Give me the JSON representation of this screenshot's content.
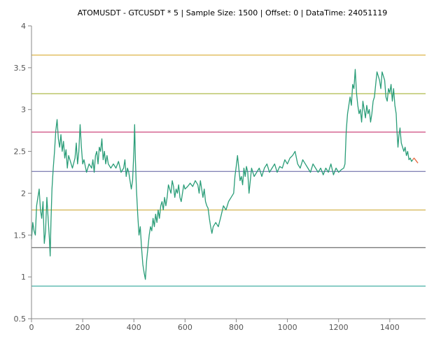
{
  "chart_data": {
    "type": "line",
    "title": "ATOMUSDT - GTCUSDT * 5 | Sample Size: 1500 | Offset: 0 | DataTime: 24051119",
    "xlabel": "",
    "ylabel": "",
    "xlim": [
      0,
      1540
    ],
    "ylim": [
      0.5,
      4
    ],
    "grid": false,
    "x_ticks": [
      0,
      200,
      400,
      600,
      800,
      1000,
      1200,
      1400
    ],
    "y_ticks": [
      0.5,
      1,
      1.5,
      2,
      2.5,
      3,
      3.5,
      4
    ],
    "x_tick_labels": [
      "0",
      "200",
      "400",
      "600",
      "800",
      "1000",
      "1200",
      "1400"
    ],
    "y_tick_labels": [
      "0.5",
      "1",
      "1.5",
      "2",
      "2.5",
      "3",
      "3.5",
      "4"
    ],
    "horizontal_lines": [
      {
        "y": 3.65,
        "color": "#d4a017"
      },
      {
        "y": 3.19,
        "color": "#9aa81e"
      },
      {
        "y": 2.73,
        "color": "#c2185b"
      },
      {
        "y": 2.26,
        "color": "#5c5c9e"
      },
      {
        "y": 1.8,
        "color": "#c9a227"
      },
      {
        "y": 1.35,
        "color": "#4a4a4a"
      },
      {
        "y": 0.89,
        "color": "#1a9e8f"
      }
    ],
    "series": [
      {
        "color": "#2a9d78",
        "points": [
          [
            0,
            1.45
          ],
          [
            5,
            1.65
          ],
          [
            10,
            1.55
          ],
          [
            15,
            1.5
          ],
          [
            20,
            1.85
          ],
          [
            25,
            1.95
          ],
          [
            30,
            2.05
          ],
          [
            35,
            1.8
          ],
          [
            40,
            1.7
          ],
          [
            45,
            1.9
          ],
          [
            50,
            1.4
          ],
          [
            55,
            1.55
          ],
          [
            60,
            1.95
          ],
          [
            65,
            1.7
          ],
          [
            70,
            1.45
          ],
          [
            73,
            1.25
          ],
          [
            76,
            1.65
          ],
          [
            80,
            2.05
          ],
          [
            85,
            2.3
          ],
          [
            90,
            2.5
          ],
          [
            95,
            2.75
          ],
          [
            100,
            2.88
          ],
          [
            105,
            2.65
          ],
          [
            110,
            2.55
          ],
          [
            115,
            2.7
          ],
          [
            120,
            2.5
          ],
          [
            125,
            2.62
          ],
          [
            130,
            2.42
          ],
          [
            135,
            2.52
          ],
          [
            140,
            2.3
          ],
          [
            145,
            2.45
          ],
          [
            150,
            2.4
          ],
          [
            160,
            2.3
          ],
          [
            170,
            2.42
          ],
          [
            175,
            2.6
          ],
          [
            180,
            2.35
          ],
          [
            185,
            2.5
          ],
          [
            190,
            2.82
          ],
          [
            195,
            2.55
          ],
          [
            200,
            2.35
          ],
          [
            205,
            2.4
          ],
          [
            215,
            2.25
          ],
          [
            225,
            2.35
          ],
          [
            235,
            2.3
          ],
          [
            240,
            2.4
          ],
          [
            245,
            2.25
          ],
          [
            250,
            2.45
          ],
          [
            255,
            2.5
          ],
          [
            260,
            2.35
          ],
          [
            265,
            2.55
          ],
          [
            270,
            2.5
          ],
          [
            275,
            2.65
          ],
          [
            280,
            2.4
          ],
          [
            285,
            2.5
          ],
          [
            290,
            2.35
          ],
          [
            295,
            2.45
          ],
          [
            300,
            2.35
          ],
          [
            310,
            2.3
          ],
          [
            320,
            2.35
          ],
          [
            330,
            2.3
          ],
          [
            340,
            2.38
          ],
          [
            350,
            2.25
          ],
          [
            360,
            2.3
          ],
          [
            365,
            2.4
          ],
          [
            370,
            2.2
          ],
          [
            375,
            2.3
          ],
          [
            380,
            2.25
          ],
          [
            385,
            2.15
          ],
          [
            390,
            2.05
          ],
          [
            395,
            2.15
          ],
          [
            400,
            2.5
          ],
          [
            403,
            2.82
          ],
          [
            406,
            2.4
          ],
          [
            410,
            2.05
          ],
          [
            415,
            1.75
          ],
          [
            420,
            1.5
          ],
          [
            425,
            1.6
          ],
          [
            430,
            1.35
          ],
          [
            435,
            1.15
          ],
          [
            440,
            1.05
          ],
          [
            445,
            0.97
          ],
          [
            450,
            1.2
          ],
          [
            455,
            1.35
          ],
          [
            460,
            1.5
          ],
          [
            465,
            1.6
          ],
          [
            470,
            1.55
          ],
          [
            475,
            1.7
          ],
          [
            480,
            1.6
          ],
          [
            485,
            1.75
          ],
          [
            490,
            1.65
          ],
          [
            495,
            1.8
          ],
          [
            500,
            1.7
          ],
          [
            505,
            1.85
          ],
          [
            510,
            1.9
          ],
          [
            515,
            1.8
          ],
          [
            520,
            1.95
          ],
          [
            525,
            1.85
          ],
          [
            530,
            1.95
          ],
          [
            535,
            2.1
          ],
          [
            540,
            2.05
          ],
          [
            545,
            2.0
          ],
          [
            550,
            2.15
          ],
          [
            555,
            2.08
          ],
          [
            560,
            1.95
          ],
          [
            565,
            2.05
          ],
          [
            570,
            2.0
          ],
          [
            575,
            2.1
          ],
          [
            580,
            1.95
          ],
          [
            585,
            1.9
          ],
          [
            590,
            2.0
          ],
          [
            595,
            2.1
          ],
          [
            600,
            2.05
          ],
          [
            610,
            2.08
          ],
          [
            620,
            2.12
          ],
          [
            630,
            2.08
          ],
          [
            640,
            2.15
          ],
          [
            650,
            2.1
          ],
          [
            655,
            2.0
          ],
          [
            660,
            2.15
          ],
          [
            665,
            2.05
          ],
          [
            670,
            1.95
          ],
          [
            675,
            2.05
          ],
          [
            680,
            1.9
          ],
          [
            685,
            1.85
          ],
          [
            690,
            1.82
          ],
          [
            695,
            1.7
          ],
          [
            700,
            1.6
          ],
          [
            705,
            1.52
          ],
          [
            710,
            1.6
          ],
          [
            720,
            1.65
          ],
          [
            730,
            1.6
          ],
          [
            740,
            1.72
          ],
          [
            750,
            1.85
          ],
          [
            760,
            1.8
          ],
          [
            770,
            1.9
          ],
          [
            780,
            1.95
          ],
          [
            790,
            2.0
          ],
          [
            795,
            2.2
          ],
          [
            800,
            2.32
          ],
          [
            805,
            2.45
          ],
          [
            810,
            2.3
          ],
          [
            815,
            2.15
          ],
          [
            820,
            2.2
          ],
          [
            825,
            2.1
          ],
          [
            830,
            2.3
          ],
          [
            835,
            2.2
          ],
          [
            840,
            2.32
          ],
          [
            845,
            2.25
          ],
          [
            850,
            2.0
          ],
          [
            860,
            2.3
          ],
          [
            870,
            2.2
          ],
          [
            880,
            2.25
          ],
          [
            890,
            2.3
          ],
          [
            900,
            2.2
          ],
          [
            910,
            2.3
          ],
          [
            920,
            2.35
          ],
          [
            930,
            2.25
          ],
          [
            940,
            2.3
          ],
          [
            950,
            2.35
          ],
          [
            960,
            2.25
          ],
          [
            970,
            2.32
          ],
          [
            980,
            2.3
          ],
          [
            990,
            2.4
          ],
          [
            1000,
            2.35
          ],
          [
            1010,
            2.42
          ],
          [
            1020,
            2.45
          ],
          [
            1030,
            2.5
          ],
          [
            1040,
            2.35
          ],
          [
            1050,
            2.3
          ],
          [
            1060,
            2.4
          ],
          [
            1070,
            2.35
          ],
          [
            1080,
            2.3
          ],
          [
            1090,
            2.25
          ],
          [
            1100,
            2.35
          ],
          [
            1110,
            2.3
          ],
          [
            1120,
            2.25
          ],
          [
            1130,
            2.3
          ],
          [
            1140,
            2.22
          ],
          [
            1150,
            2.3
          ],
          [
            1160,
            2.25
          ],
          [
            1170,
            2.35
          ],
          [
            1180,
            2.22
          ],
          [
            1190,
            2.3
          ],
          [
            1200,
            2.25
          ],
          [
            1210,
            2.28
          ],
          [
            1220,
            2.3
          ],
          [
            1225,
            2.35
          ],
          [
            1230,
            2.75
          ],
          [
            1235,
            2.95
          ],
          [
            1240,
            3.05
          ],
          [
            1245,
            3.15
          ],
          [
            1250,
            3.05
          ],
          [
            1255,
            3.3
          ],
          [
            1260,
            3.25
          ],
          [
            1265,
            3.48
          ],
          [
            1270,
            3.2
          ],
          [
            1275,
            3.05
          ],
          [
            1280,
            2.95
          ],
          [
            1285,
            3.0
          ],
          [
            1290,
            2.85
          ],
          [
            1295,
            3.1
          ],
          [
            1300,
            3.0
          ],
          [
            1305,
            2.9
          ],
          [
            1310,
            3.05
          ],
          [
            1315,
            2.95
          ],
          [
            1320,
            3.0
          ],
          [
            1325,
            2.85
          ],
          [
            1330,
            2.95
          ],
          [
            1335,
            3.1
          ],
          [
            1340,
            3.15
          ],
          [
            1345,
            3.3
          ],
          [
            1350,
            3.45
          ],
          [
            1355,
            3.4
          ],
          [
            1360,
            3.35
          ],
          [
            1365,
            3.25
          ],
          [
            1370,
            3.45
          ],
          [
            1375,
            3.4
          ],
          [
            1380,
            3.35
          ],
          [
            1385,
            3.15
          ],
          [
            1390,
            3.1
          ],
          [
            1395,
            3.25
          ],
          [
            1400,
            3.2
          ],
          [
            1405,
            3.3
          ],
          [
            1410,
            3.1
          ],
          [
            1415,
            3.25
          ],
          [
            1420,
            3.05
          ],
          [
            1425,
            2.95
          ],
          [
            1428,
            2.75
          ],
          [
            1432,
            2.55
          ],
          [
            1436,
            2.7
          ],
          [
            1440,
            2.78
          ],
          [
            1445,
            2.6
          ],
          [
            1450,
            2.55
          ],
          [
            1455,
            2.5
          ],
          [
            1460,
            2.55
          ],
          [
            1465,
            2.45
          ],
          [
            1470,
            2.5
          ],
          [
            1475,
            2.4
          ],
          [
            1480,
            2.42
          ],
          [
            1485,
            2.38
          ],
          [
            1490,
            2.4
          ]
        ]
      },
      {
        "color": "#e8663d",
        "points": [
          [
            1490,
            2.4
          ],
          [
            1495,
            2.42
          ],
          [
            1500,
            2.4
          ],
          [
            1505,
            2.38
          ],
          [
            1510,
            2.36
          ]
        ]
      }
    ]
  }
}
